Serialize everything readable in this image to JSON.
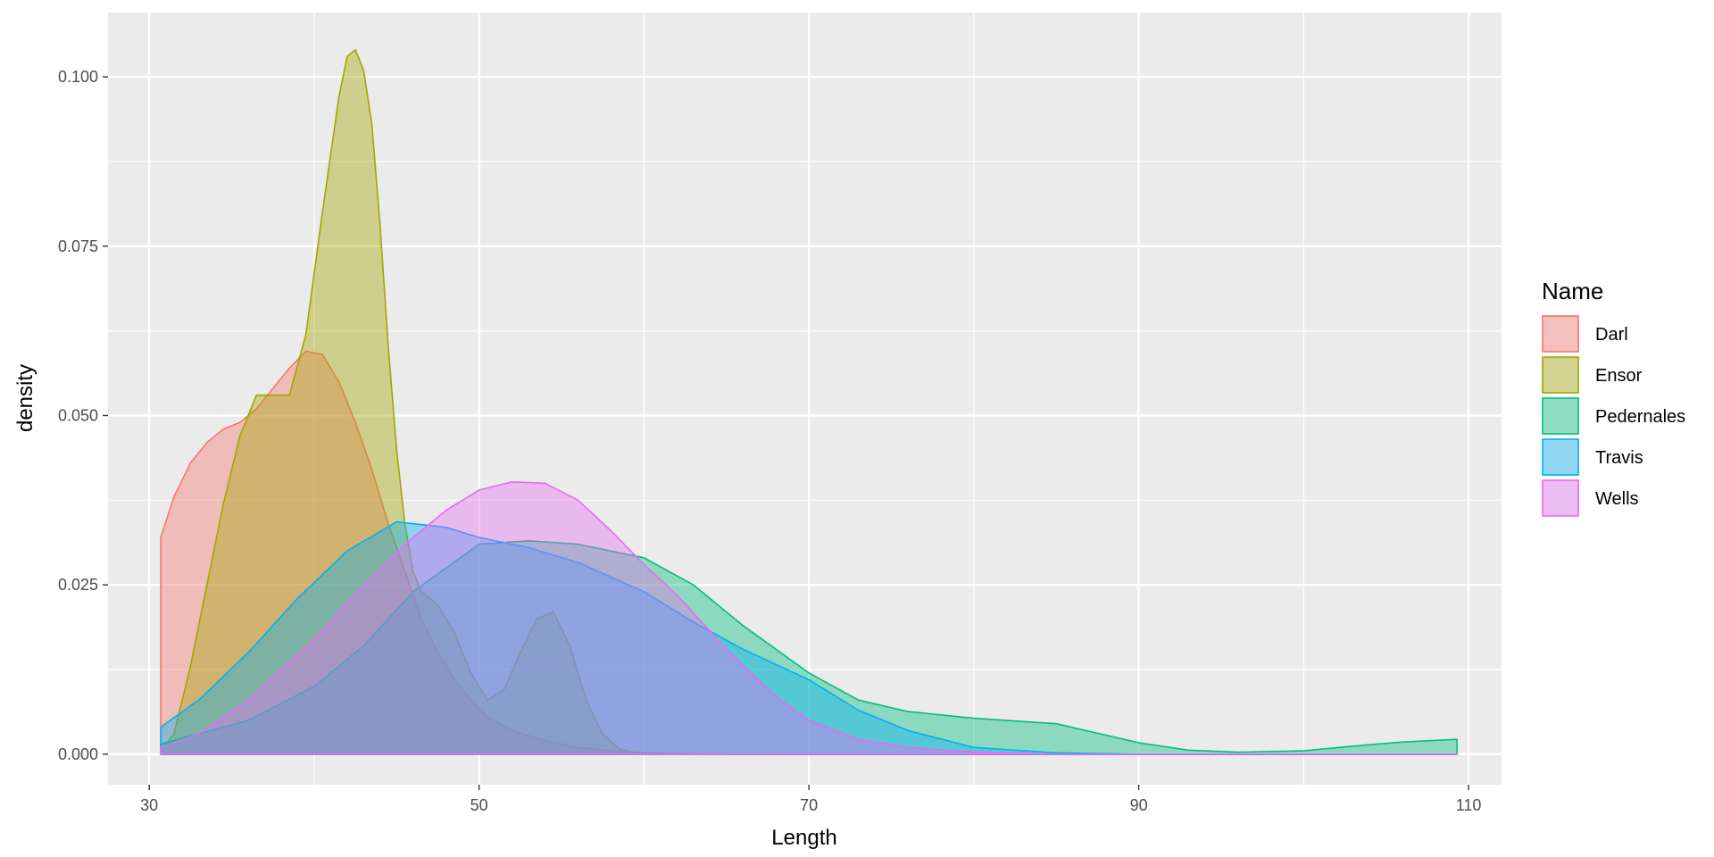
{
  "chart_data": {
    "type": "area",
    "subtype": "density",
    "title": "",
    "xlabel": "Length",
    "ylabel": "density",
    "xlim": [
      27.5,
      112
    ],
    "ylim": [
      -0.0045,
      0.1095
    ],
    "x_ticks": [
      30,
      50,
      70,
      90,
      110
    ],
    "x_tick_labels": [
      "30",
      "50",
      "70",
      "90",
      "110"
    ],
    "y_ticks": [
      0,
      0.025,
      0.05,
      0.075,
      0.1
    ],
    "y_tick_labels": [
      "0.000",
      "0.025",
      "0.050",
      "0.075",
      "0.100"
    ],
    "grid": true,
    "panel_background": "#EBEBEB",
    "fill_opacity": 0.4,
    "legend": {
      "title": "Name",
      "position": "right",
      "entries": [
        "Darl",
        "Ensor",
        "Pedernales",
        "Travis",
        "Wells"
      ]
    },
    "series": [
      {
        "name": "Darl",
        "color": "#F8766D",
        "x": [
          30.7,
          31.5,
          32.5,
          33.5,
          34.5,
          35.5,
          36.5,
          37.5,
          38.5,
          39.5,
          40.5,
          41.5,
          42.5,
          43.5,
          44.5,
          45.5,
          46.5,
          47.5,
          48.5,
          49.5,
          50.5,
          52,
          54,
          56,
          58,
          60,
          62,
          66,
          70,
          80,
          90,
          100,
          109.3
        ],
        "y": [
          0.032,
          0.038,
          0.043,
          0.046,
          0.048,
          0.049,
          0.051,
          0.054,
          0.057,
          0.0595,
          0.059,
          0.055,
          0.049,
          0.042,
          0.034,
          0.027,
          0.02,
          0.015,
          0.011,
          0.008,
          0.0055,
          0.0035,
          0.002,
          0.001,
          0.0005,
          0.0002,
          0.0001,
          3e-05,
          0,
          0,
          0,
          0,
          0
        ]
      },
      {
        "name": "Ensor",
        "color": "#A3A500",
        "x": [
          30.7,
          31.5,
          32.5,
          33.5,
          34.5,
          35.5,
          36.5,
          37.5,
          38.5,
          39.5,
          40.5,
          41.5,
          42,
          42.5,
          43,
          43.5,
          44,
          44.5,
          45,
          45.5,
          46,
          46.5,
          47.5,
          48.5,
          49.5,
          50.5,
          51.5,
          52.5,
          53.5,
          54.5,
          55.5,
          56.5,
          57.5,
          58.5,
          59.5,
          60.5,
          62,
          66,
          70,
          80,
          90,
          100,
          109.3
        ],
        "y": [
          0.0005,
          0.003,
          0.013,
          0.025,
          0.037,
          0.047,
          0.053,
          0.053,
          0.053,
          0.062,
          0.08,
          0.097,
          0.103,
          0.104,
          0.101,
          0.093,
          0.078,
          0.06,
          0.045,
          0.034,
          0.027,
          0.024,
          0.022,
          0.018,
          0.012,
          0.008,
          0.0095,
          0.015,
          0.02,
          0.021,
          0.016,
          0.008,
          0.003,
          0.0008,
          0.0002,
          5e-05,
          0,
          0,
          0,
          0,
          0,
          0,
          0
        ]
      },
      {
        "name": "Pedernales",
        "color": "#00BF7D",
        "x": [
          30.7,
          33,
          36,
          40,
          43,
          46,
          50,
          53,
          56,
          60,
          63,
          66,
          70,
          73,
          76,
          80,
          85,
          90,
          93,
          96,
          100,
          103,
          106,
          109.3
        ],
        "y": [
          0.0015,
          0.003,
          0.005,
          0.01,
          0.016,
          0.024,
          0.031,
          0.0315,
          0.031,
          0.029,
          0.025,
          0.019,
          0.012,
          0.008,
          0.0063,
          0.0053,
          0.0045,
          0.0017,
          0.0006,
          0.0003,
          0.0005,
          0.0012,
          0.0018,
          0.0022
        ]
      },
      {
        "name": "Travis",
        "color": "#00B0F6",
        "x": [
          30.7,
          33,
          36,
          39,
          42,
          45,
          48,
          50,
          53,
          56,
          60,
          63,
          66,
          70,
          73,
          76,
          80,
          85,
          90,
          100,
          109.3
        ],
        "y": [
          0.004,
          0.008,
          0.015,
          0.023,
          0.03,
          0.0343,
          0.0335,
          0.032,
          0.0305,
          0.0283,
          0.024,
          0.0195,
          0.0155,
          0.011,
          0.0065,
          0.0035,
          0.001,
          0.0002,
          0,
          0,
          0
        ]
      },
      {
        "name": "Wells",
        "color": "#E76BF3",
        "x": [
          30.7,
          33,
          36,
          40,
          43,
          46,
          48,
          50,
          52,
          54,
          56,
          58,
          60,
          62,
          65,
          68,
          70,
          73,
          76,
          80,
          85,
          90,
          100,
          109.3
        ],
        "y": [
          0.001,
          0.003,
          0.008,
          0.017,
          0.025,
          0.032,
          0.036,
          0.039,
          0.0402,
          0.04,
          0.0375,
          0.033,
          0.028,
          0.0235,
          0.0155,
          0.0085,
          0.005,
          0.0022,
          0.001,
          0.0003,
          0,
          0,
          0,
          0
        ]
      }
    ]
  }
}
